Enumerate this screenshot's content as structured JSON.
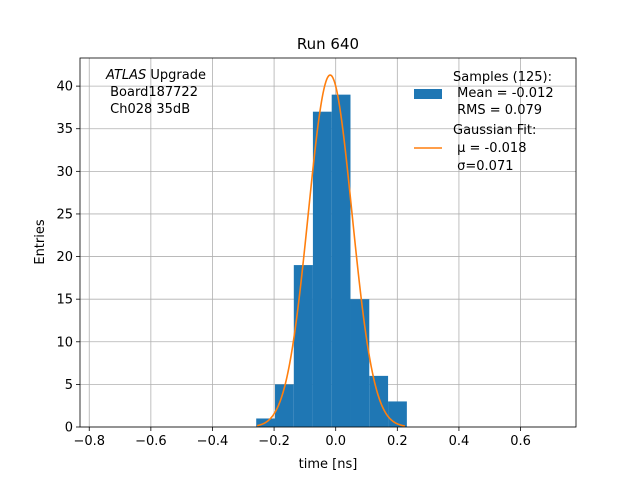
{
  "chart_data": {
    "type": "bar",
    "title": "Run 640",
    "xlabel": "time [ns]",
    "ylabel": "Entries",
    "xlim": [
      -0.83,
      0.78
    ],
    "ylim": [
      0,
      43.3
    ],
    "grid": true,
    "x_ticks": [
      -0.8,
      -0.6,
      -0.4,
      -0.2,
      0.0,
      0.2,
      0.4,
      0.6
    ],
    "x_tick_labels": [
      "−0.8",
      "−0.6",
      "−0.4",
      "−0.2",
      "0.0",
      "0.2",
      "0.4",
      "0.6"
    ],
    "y_ticks": [
      0,
      5,
      10,
      15,
      20,
      25,
      30,
      35,
      40
    ],
    "y_tick_labels": [
      "0",
      "5",
      "10",
      "15",
      "20",
      "25",
      "30",
      "35",
      "40"
    ],
    "histogram": {
      "color": "#1f77b4",
      "bins": [
        {
          "x0": -0.258,
          "x1": -0.197,
          "count": 1
        },
        {
          "x0": -0.197,
          "x1": -0.136,
          "count": 5
        },
        {
          "x0": -0.136,
          "x1": -0.074,
          "count": 19
        },
        {
          "x0": -0.074,
          "x1": -0.013,
          "count": 37
        },
        {
          "x0": -0.013,
          "x1": 0.048,
          "count": 39
        },
        {
          "x0": 0.048,
          "x1": 0.109,
          "count": 15
        },
        {
          "x0": 0.109,
          "x1": 0.17,
          "count": 6
        },
        {
          "x0": 0.17,
          "x1": 0.231,
          "count": 3
        }
      ]
    },
    "gaussian_fit": {
      "color": "#ff7f0e",
      "mu": -0.018,
      "sigma": 0.071,
      "amplitude": 41.3,
      "x_range": [
        -0.255,
        0.225
      ]
    },
    "legend": {
      "placement": "top-right",
      "entries": [
        {
          "kind": "patch",
          "lines": [
            "Samples (125):",
            " Mean = -0.012",
            " RMS = 0.079"
          ]
        },
        {
          "kind": "line",
          "lines": [
            "Gaussian Fit:",
            " μ = -0.018",
            " σ=0.071"
          ]
        }
      ]
    },
    "annotation": {
      "italic": "ATLAS",
      "rest": " Upgrade",
      "lines": [
        " Board187722",
        " Ch028 35dB"
      ]
    }
  }
}
